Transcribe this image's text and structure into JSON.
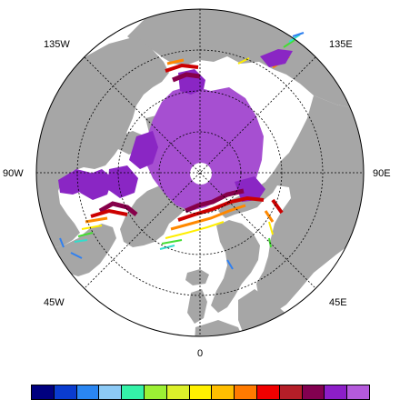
{
  "map": {
    "projection": "north-polar-stereographic",
    "ocean_color": "#ffffff",
    "land_color": "#a6a6a6",
    "graticule_color": "#000000",
    "longitude_labels": [
      "135W",
      "135E",
      "90W",
      "90E",
      "45W",
      "45E",
      "0"
    ],
    "ice_colors": {
      "core": "#a64fd1",
      "interior": "#8a26c4",
      "edge_dark": "#86004a",
      "edge_red": "#cc0000",
      "edge_orange": "#ff8800",
      "edge_yellow": "#ffee00",
      "edge_green": "#44dd33",
      "edge_cyan": "#33ddcc",
      "edge_blue": "#3080f0"
    }
  },
  "colorbar": {
    "colors": [
      "#00007f",
      "#0a3ccf",
      "#2a86f2",
      "#8ccaf6",
      "#34f2a8",
      "#9cf034",
      "#dcf02a",
      "#fff000",
      "#ffbe00",
      "#ff7a00",
      "#f00000",
      "#b41e28",
      "#820050",
      "#8c1ec8",
      "#b45adc"
    ]
  }
}
